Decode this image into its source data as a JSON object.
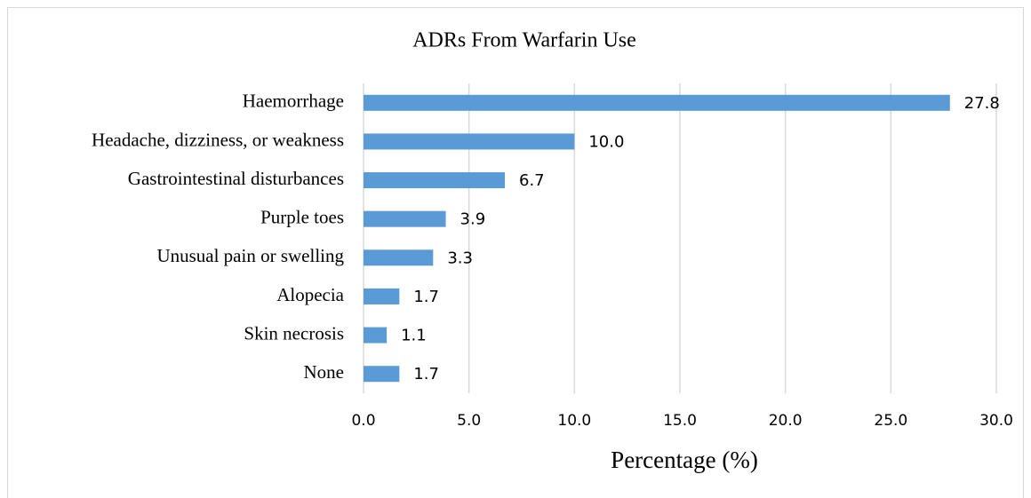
{
  "chart_data": {
    "type": "bar",
    "orientation": "horizontal",
    "title": "ADRs From Warfarin Use",
    "x_label": "Percentage (%)",
    "categories": [
      "Haemorrhage",
      "Headache, dizziness, or weakness",
      "Gastrointestinal disturbances",
      "Purple toes",
      "Unusual pain or swelling",
      "Alopecia",
      "Skin necrosis",
      "None"
    ],
    "values": [
      27.8,
      10.0,
      6.7,
      3.9,
      3.3,
      1.7,
      1.1,
      1.7
    ],
    "value_labels": [
      "27.8",
      "10.0",
      "6.7",
      "3.9",
      "3.3",
      "1.7",
      "1.1",
      "1.7"
    ],
    "color": "#5b9bd5",
    "xlim": [
      0,
      30
    ],
    "xticks": [
      {
        "value": 0,
        "label": "0.0"
      },
      {
        "value": 5,
        "label": "5.0"
      },
      {
        "value": 10,
        "label": "10.0"
      },
      {
        "value": 15,
        "label": "15.0"
      },
      {
        "value": 20,
        "label": "20.0"
      },
      {
        "value": 25,
        "label": "25.0"
      },
      {
        "value": 30,
        "label": "30.0"
      }
    ],
    "grid": true
  }
}
